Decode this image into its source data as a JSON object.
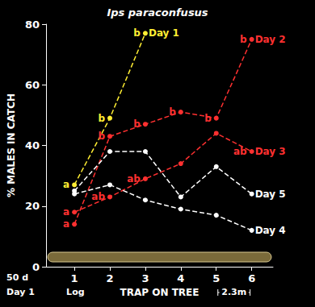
{
  "chart_data": {
    "type": "line",
    "title": "Ips paraconfusus",
    "x_label": "TRAP ON TREE",
    "y_label": "% MALES IN CATCH",
    "xlim": [
      0.2,
      6.6
    ],
    "xticks": [
      1,
      2,
      3,
      4,
      5,
      6
    ],
    "ylim": [
      0,
      80
    ],
    "yticks": [
      0,
      20,
      40,
      60,
      80
    ],
    "grid": false,
    "marker": "circle",
    "line_style": "dashed",
    "annotations": [
      "50 d",
      "Day 1",
      "Log",
      "2.3m"
    ],
    "series": [
      {
        "name": "Day 1",
        "color": "#ffee33",
        "x": [
          1,
          2,
          3
        ],
        "values": [
          27,
          49,
          77
        ],
        "labels": [
          "a",
          "b",
          "b"
        ]
      },
      {
        "name": "Day 2",
        "color": "#ff3030",
        "x": [
          1,
          2,
          3,
          4,
          5,
          6
        ],
        "values": [
          14,
          43,
          47,
          51,
          49,
          75
        ],
        "labels": [
          "a",
          "b",
          "b",
          "b",
          "b",
          "b"
        ]
      },
      {
        "name": "Day 3",
        "color": "#ff3030",
        "x": [
          1,
          2,
          3,
          4,
          5,
          6
        ],
        "values": [
          18,
          23,
          29,
          34,
          44,
          38
        ],
        "labels": [
          "a",
          "ab",
          "ab",
          null,
          null,
          "ab"
        ]
      },
      {
        "name": "Day 5",
        "color": "#ffffff",
        "x": [
          1,
          2,
          3,
          4,
          5,
          6
        ],
        "values": [
          25,
          38,
          38,
          23,
          33,
          24
        ],
        "labels": [
          null,
          null,
          null,
          null,
          null,
          null
        ]
      },
      {
        "name": "Day 4",
        "color": "#ffffff",
        "x": [
          1,
          2,
          3,
          4,
          5,
          6
        ],
        "values": [
          24,
          27,
          22,
          19,
          17,
          12
        ],
        "labels": [
          null,
          null,
          null,
          null,
          null,
          null
        ]
      }
    ]
  }
}
